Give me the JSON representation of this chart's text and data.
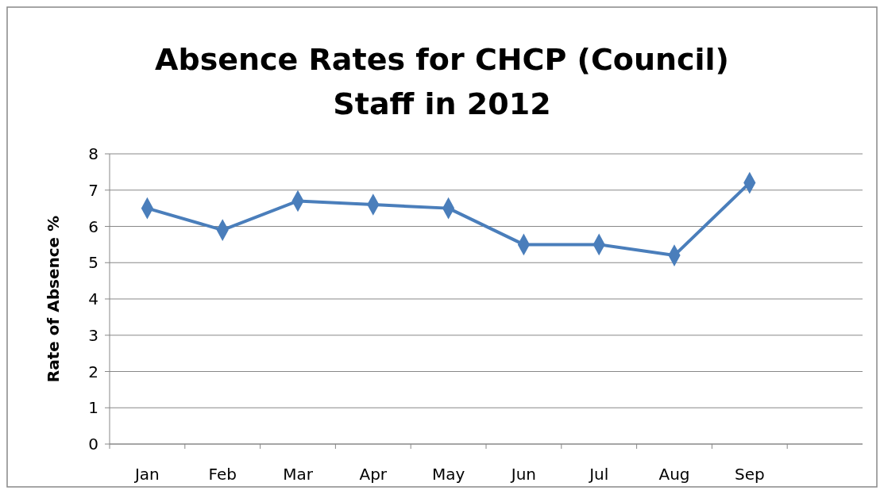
{
  "chart_data": {
    "type": "line",
    "title": "Absence Rates for CHCP (Council) Staff in 2012",
    "ylabel": "Rate of Absence %",
    "categories": [
      "Jan",
      "Feb",
      "Mar",
      "Apr",
      "May",
      "Jun",
      "Jul",
      "Aug",
      "Sep",
      null
    ],
    "series": [
      {
        "color": "#4a7ebb",
        "values": [
          6.5,
          5.9,
          6.7,
          6.6,
          6.5,
          5.5,
          5.5,
          5.2,
          7.2,
          null
        ]
      }
    ],
    "ylim": [
      0,
      8
    ],
    "yticks": [
      0,
      1,
      2,
      3,
      4,
      5,
      6,
      7,
      8
    ],
    "grid": "y",
    "marker": "diamond",
    "line_style": "solid"
  }
}
